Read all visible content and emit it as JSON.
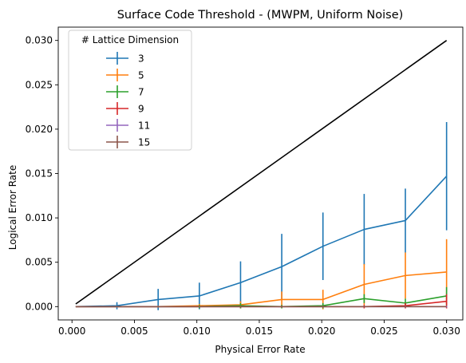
{
  "chart_data": {
    "type": "line",
    "title": "Surface Code Threshold - (MWPM, Uniform Noise)",
    "xlabel": "Physical Error Rate",
    "ylabel": "Logical Error Rate",
    "xlim": [
      -0.0011,
      0.0313
    ],
    "ylim": [
      -0.0015,
      0.0315
    ],
    "xticks": [
      0.0,
      0.005,
      0.01,
      0.015,
      0.02,
      0.025,
      0.03
    ],
    "xtick_labels": [
      "0.000",
      "0.005",
      "0.010",
      "0.015",
      "0.020",
      "0.025",
      "0.030"
    ],
    "yticks": [
      0.0,
      0.005,
      0.01,
      0.015,
      0.02,
      0.025,
      0.03
    ],
    "ytick_labels": [
      "0.000",
      "0.005",
      "0.010",
      "0.015",
      "0.020",
      "0.025",
      "0.030"
    ],
    "x": [
      0.0003,
      0.0036,
      0.0069,
      0.0102,
      0.0135,
      0.0168,
      0.0201,
      0.0234,
      0.0267,
      0.03
    ],
    "legend_title": "# Lattice Dimension",
    "legend_position": "upper-left",
    "reference_line": {
      "x": [
        0.0003,
        0.03
      ],
      "y": [
        0.0003,
        0.03
      ],
      "color": "#000000"
    },
    "series": [
      {
        "name": "3",
        "color": "#1f77b4",
        "y": [
          0.0,
          0.0001,
          0.0008,
          0.0012,
          0.0027,
          0.0045,
          0.0068,
          0.0087,
          0.0097,
          0.0147
        ],
        "err": [
          0.0,
          0.0004,
          0.0012,
          0.0015,
          0.0024,
          0.0037,
          0.0038,
          0.004,
          0.0036,
          0.0061
        ]
      },
      {
        "name": "5",
        "color": "#ff7f0e",
        "y": [
          0.0,
          0.0,
          0.0,
          0.0001,
          0.0002,
          0.0008,
          0.0008,
          0.0025,
          0.0035,
          0.0039
        ],
        "err": [
          0.0,
          0.0,
          0.0001,
          0.0002,
          0.0004,
          0.0009,
          0.0011,
          0.0023,
          0.0026,
          0.0037
        ]
      },
      {
        "name": "7",
        "color": "#2ca02c",
        "y": [
          0.0,
          0.0,
          0.0,
          0.0,
          0.0001,
          0.0,
          0.0001,
          0.0009,
          0.0004,
          0.0012
        ],
        "err": [
          0.0,
          0.0,
          0.0,
          0.0002,
          0.0003,
          0.0002,
          0.0003,
          0.0005,
          0.0005,
          0.001
        ]
      },
      {
        "name": "9",
        "color": "#d62728",
        "y": [
          0.0,
          0.0,
          0.0,
          0.0,
          0.0,
          0.0,
          0.0,
          0.0,
          0.0001,
          0.0006
        ],
        "err": [
          0.0,
          0.0,
          0.0,
          0.0,
          0.0001,
          0.0001,
          0.0001,
          0.0002,
          0.0003,
          0.0008
        ]
      },
      {
        "name": "11",
        "color": "#9467bd",
        "y": [
          0.0,
          0.0,
          0.0,
          0.0,
          0.0,
          0.0,
          0.0,
          0.0,
          0.0,
          0.0
        ],
        "err": [
          0.0,
          0.0,
          0.0,
          0.0,
          0.0,
          0.0,
          0.0,
          0.0,
          0.0001,
          0.0001
        ]
      },
      {
        "name": "15",
        "color": "#8c564b",
        "y": [
          0.0,
          0.0,
          0.0,
          0.0,
          0.0,
          0.0,
          0.0,
          0.0,
          0.0,
          0.0
        ],
        "err": [
          0.0,
          0.0,
          0.0,
          0.0,
          0.0,
          0.0,
          0.0,
          0.0,
          0.0,
          0.0
        ]
      }
    ]
  }
}
